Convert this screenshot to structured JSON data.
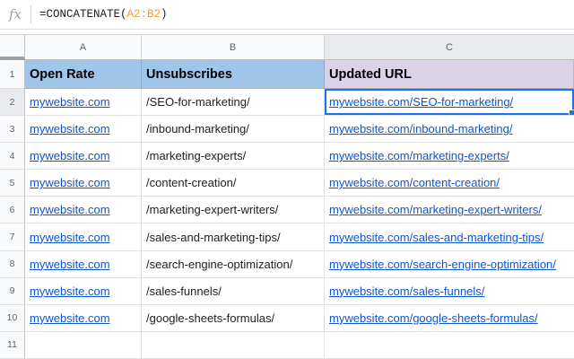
{
  "formula_bar": {
    "fx_label": "fx",
    "formula": "=CONCATENATE(A2:B2)",
    "formula_prefix": "=CONCATENATE(",
    "formula_range": "A2:B2",
    "formula_suffix": ")"
  },
  "colors": {
    "header_fill_blue": "#9fc5e8",
    "header_fill_purple": "#d9d2e9",
    "selection_blue": "#1a73e8",
    "link_blue": "#1155cc",
    "formula_range_orange": "#f29d38",
    "highlighted_header_gray": "#e8eaed"
  },
  "grid": {
    "column_letters": [
      "A",
      "B",
      "C"
    ],
    "selected_cell": "C2",
    "header_row": {
      "number": "1",
      "a": "Open Rate",
      "b": "Unsubscribes",
      "c": "Updated URL"
    },
    "rows": [
      {
        "number": "2",
        "a": "mywebsite.com",
        "b": "/SEO-for-marketing/",
        "c": "mywebsite.com/SEO-for-marketing/"
      },
      {
        "number": "3",
        "a": "mywebsite.com",
        "b": "/inbound-marketing/",
        "c": "mywebsite.com/inbound-marketing/"
      },
      {
        "number": "4",
        "a": "mywebsite.com",
        "b": "/marketing-experts/",
        "c": "mywebsite.com/marketing-experts/"
      },
      {
        "number": "5",
        "a": "mywebsite.com",
        "b": "/content-creation/",
        "c": "mywebsite.com/content-creation/"
      },
      {
        "number": "6",
        "a": "mywebsite.com",
        "b": "/marketing-expert-writers/",
        "c": "mywebsite.com/marketing-expert-writers/"
      },
      {
        "number": "7",
        "a": "mywebsite.com",
        "b": "/sales-and-marketing-tips/",
        "c": "mywebsite.com/sales-and-marketing-tips/"
      },
      {
        "number": "8",
        "a": "mywebsite.com",
        "b": "/search-engine-optimization/",
        "c": "mywebsite.com/search-engine-optimization/"
      },
      {
        "number": "9",
        "a": "mywebsite.com",
        "b": "/sales-funnels/",
        "c": "mywebsite.com/sales-funnels/"
      },
      {
        "number": "10",
        "a": "mywebsite.com",
        "b": "/google-sheets-formulas/",
        "c": "mywebsite.com/google-sheets-formulas/"
      },
      {
        "number": "11",
        "a": "",
        "b": "",
        "c": ""
      }
    ]
  }
}
